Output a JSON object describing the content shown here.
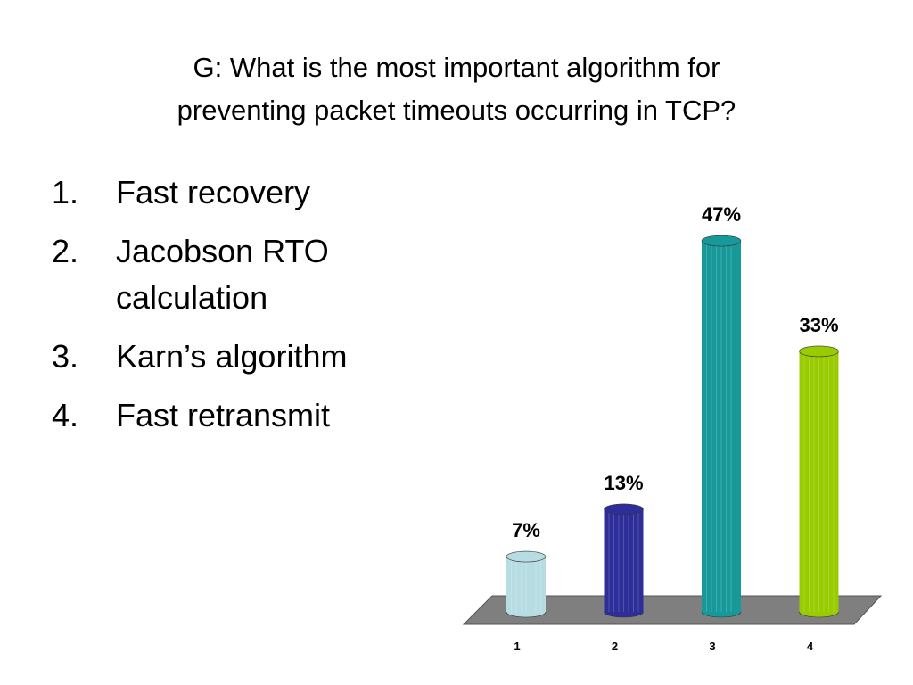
{
  "slide": {
    "title_lines": [
      "G: What is the most important algorithm for",
      "preventing packet timeouts occurring in TCP?"
    ],
    "items": [
      {
        "number": "1.",
        "text": "Fast recovery"
      },
      {
        "number": "2.",
        "text": "Jacobson RTO calculation"
      },
      {
        "number": "3.",
        "text": "Karn’s algorithm"
      },
      {
        "number": "4.",
        "text": "Fast retransmit"
      }
    ]
  },
  "chart_data": {
    "type": "bar",
    "categories": [
      "1",
      "2",
      "3",
      "4"
    ],
    "values": [
      7,
      13,
      47,
      33
    ],
    "value_labels": [
      "7%",
      "13%",
      "47%",
      "33%"
    ],
    "colors": [
      "#b7dde3",
      "#2e2e9a",
      "#17999a",
      "#99cc00"
    ]
  }
}
